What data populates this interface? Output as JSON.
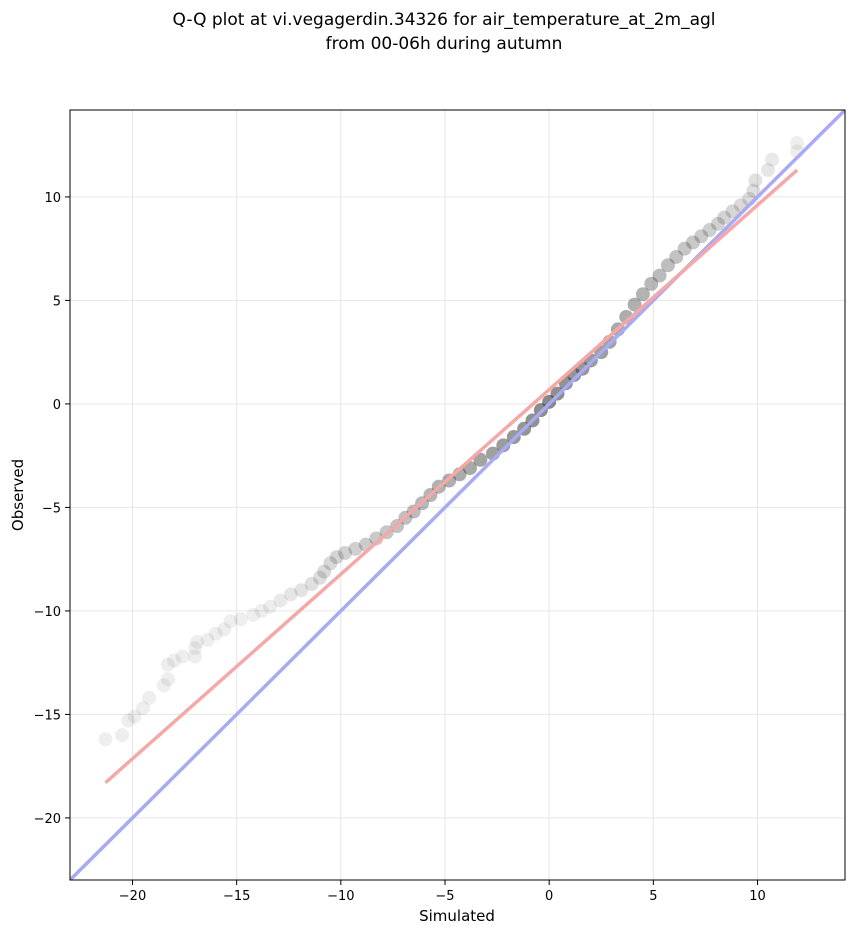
{
  "chart_data": {
    "type": "scatter",
    "title_lines": [
      "Q-Q plot at vi.vegagerdin.34326 for air_temperature_at_2m_agl",
      "from 00-06h during autumn"
    ],
    "xlabel": "Simulated",
    "ylabel": "Observed",
    "xlim": [
      -23,
      14.2
    ],
    "ylim": [
      -23,
      14.2
    ],
    "xticks": [
      -20,
      -15,
      -10,
      -5,
      0,
      5,
      10
    ],
    "yticks": [
      -20,
      -15,
      -10,
      -5,
      0,
      5,
      10
    ],
    "xtick_labels": [
      "−20",
      "−15",
      "−10",
      "−5",
      "0",
      "5",
      "10"
    ],
    "ytick_labels": [
      "−20",
      "−15",
      "−10",
      "−5",
      "0",
      "5",
      "10"
    ],
    "grid": true,
    "identity_line": {
      "points": [
        [
          -23,
          -23
        ],
        [
          14.2,
          14.2
        ]
      ],
      "color": "#a8aaf5"
    },
    "fit_line": {
      "points": [
        [
          -21.3,
          -18.3
        ],
        [
          11.9,
          11.3
        ]
      ],
      "color": "#f5a8a8"
    },
    "quantiles": [
      [
        -21.3,
        -16.2
      ],
      [
        -20.5,
        -16.0
      ],
      [
        -20.2,
        -15.3
      ],
      [
        -19.9,
        -15.1
      ],
      [
        -19.5,
        -14.7
      ],
      [
        -19.2,
        -14.2
      ],
      [
        -18.5,
        -13.6
      ],
      [
        -18.3,
        -13.3
      ],
      [
        -18.3,
        -12.6
      ],
      [
        -18.0,
        -12.4
      ],
      [
        -17.6,
        -12.2
      ],
      [
        -17.0,
        -12.2
      ],
      [
        -17.0,
        -11.8
      ],
      [
        -16.9,
        -11.5
      ],
      [
        -16.4,
        -11.4
      ],
      [
        -16.0,
        -11.1
      ],
      [
        -15.6,
        -10.9
      ],
      [
        -15.3,
        -10.5
      ],
      [
        -14.8,
        -10.4
      ],
      [
        -14.2,
        -10.2
      ],
      [
        -13.8,
        -10.0
      ],
      [
        -13.4,
        -9.8
      ],
      [
        -12.9,
        -9.5
      ],
      [
        -12.4,
        -9.2
      ],
      [
        -11.9,
        -9.0
      ],
      [
        -11.4,
        -8.7
      ],
      [
        -11.0,
        -8.4
      ],
      [
        -10.8,
        -8.1
      ],
      [
        -10.5,
        -7.7
      ],
      [
        -10.2,
        -7.4
      ],
      [
        -9.8,
        -7.2
      ],
      [
        -9.3,
        -7.0
      ],
      [
        -8.8,
        -6.8
      ],
      [
        -8.3,
        -6.5
      ],
      [
        -7.8,
        -6.2
      ],
      [
        -7.3,
        -5.9
      ],
      [
        -6.9,
        -5.5
      ],
      [
        -6.5,
        -5.2
      ],
      [
        -6.1,
        -4.8
      ],
      [
        -5.7,
        -4.4
      ],
      [
        -5.3,
        -4.0
      ],
      [
        -4.8,
        -3.7
      ],
      [
        -4.3,
        -3.4
      ],
      [
        -3.8,
        -3.1
      ],
      [
        -3.3,
        -2.7
      ],
      [
        -2.7,
        -2.4
      ],
      [
        -2.2,
        -2.0
      ],
      [
        -1.7,
        -1.6
      ],
      [
        -1.2,
        -1.2
      ],
      [
        -0.8,
        -0.8
      ],
      [
        -0.4,
        -0.3
      ],
      [
        0.0,
        0.1
      ],
      [
        0.4,
        0.5
      ],
      [
        0.8,
        1.0
      ],
      [
        1.2,
        1.4
      ],
      [
        1.6,
        1.7
      ],
      [
        2.0,
        2.1
      ],
      [
        2.5,
        2.5
      ],
      [
        2.9,
        3.0
      ],
      [
        3.3,
        3.6
      ],
      [
        3.7,
        4.2
      ],
      [
        4.1,
        4.8
      ],
      [
        4.5,
        5.3
      ],
      [
        4.9,
        5.8
      ],
      [
        5.3,
        6.2
      ],
      [
        5.7,
        6.7
      ],
      [
        6.1,
        7.1
      ],
      [
        6.5,
        7.5
      ],
      [
        6.9,
        7.8
      ],
      [
        7.3,
        8.1
      ],
      [
        7.7,
        8.4
      ],
      [
        8.1,
        8.7
      ],
      [
        8.4,
        9.0
      ],
      [
        8.8,
        9.3
      ],
      [
        9.2,
        9.6
      ],
      [
        9.6,
        9.9
      ],
      [
        9.8,
        10.3
      ],
      [
        9.9,
        10.8
      ],
      [
        10.5,
        11.3
      ],
      [
        10.7,
        11.8
      ],
      [
        11.9,
        12.2
      ],
      [
        11.9,
        12.6
      ]
    ]
  }
}
